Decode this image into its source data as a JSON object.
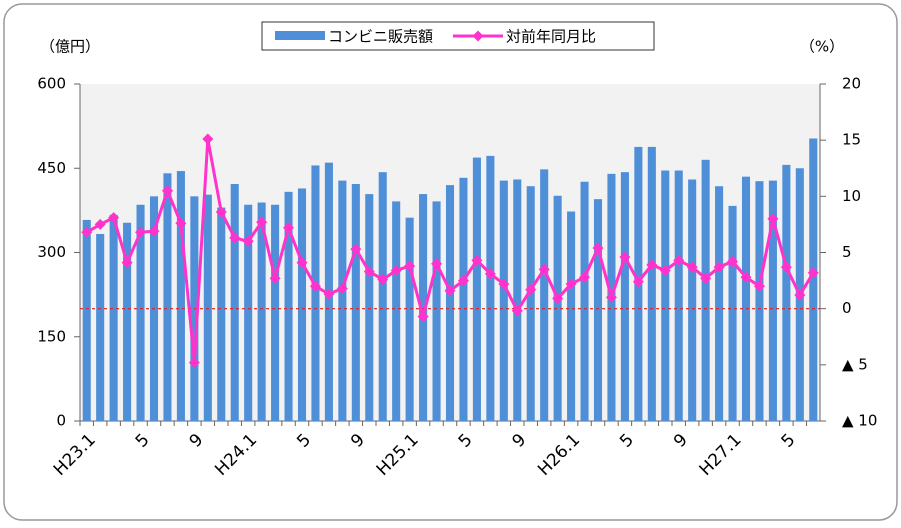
{
  "chart_data": {
    "type": "bar-line",
    "y_label": "（億円）",
    "y2_label": "（%）",
    "categories": [
      "H23.1",
      null,
      null,
      null,
      "5",
      null,
      null,
      null,
      "9",
      null,
      null,
      null,
      "H24.1",
      null,
      null,
      null,
      "5",
      null,
      null,
      null,
      "9",
      null,
      null,
      null,
      "H25.1",
      null,
      null,
      null,
      "5",
      null,
      null,
      null,
      "9",
      null,
      null,
      null,
      "H26.1",
      null,
      null,
      null,
      "5",
      null,
      null,
      null,
      "9",
      null,
      null,
      null,
      "H27.1",
      null,
      null,
      null,
      "5",
      null,
      null
    ],
    "series": [
      {
        "name": "コンビニ販売額",
        "type": "bar",
        "color": "#4f8fd8",
        "axis": "y",
        "values": [
          358,
          333,
          367,
          353,
          385,
          400,
          441,
          445,
          400,
          403,
          380,
          422,
          385,
          389,
          385,
          408,
          414,
          455,
          460,
          428,
          422,
          404,
          443,
          391,
          362,
          404,
          391,
          420,
          433,
          469,
          472,
          428,
          430,
          418,
          448,
          401,
          373,
          426,
          395,
          440,
          443,
          488,
          488,
          446,
          446,
          430,
          465,
          418,
          383,
          435,
          427,
          428,
          456,
          450,
          503
        ]
      },
      {
        "name": "対前年同月比",
        "type": "line",
        "color": "#ff33cc",
        "axis": "y2",
        "values": [
          6.8,
          7.5,
          8.1,
          4.1,
          6.8,
          6.9,
          10.5,
          7.6,
          -4.8,
          15.1,
          8.6,
          6.3,
          6.0,
          7.7,
          2.7,
          7.2,
          4.1,
          2.0,
          1.3,
          1.8,
          5.3,
          3.3,
          2.6,
          3.4,
          3.8,
          -0.7,
          4.0,
          1.6,
          2.5,
          4.3,
          3.1,
          2.2,
          -0.2,
          1.7,
          3.5,
          0.9,
          2.2,
          2.8,
          5.4,
          1.0,
          4.6,
          2.4,
          3.9,
          3.4,
          4.3,
          3.7,
          2.7,
          3.7,
          4.2,
          2.8,
          2.0,
          8.0,
          3.7,
          1.2,
          3.2
        ]
      }
    ],
    "ylim": [
      0,
      600
    ],
    "yticks": [
      0,
      150,
      300,
      450,
      600
    ],
    "y2lim": [
      -10,
      20
    ],
    "y2ticks": [
      {
        "value": -10,
        "label": "▲ 10"
      },
      {
        "value": -5,
        "label": "▲ 5"
      },
      0,
      5,
      10,
      15,
      20
    ],
    "y2_reference": 0,
    "reference_color": "#e02020",
    "plot_background": "#f2f2f2",
    "grid": false
  }
}
